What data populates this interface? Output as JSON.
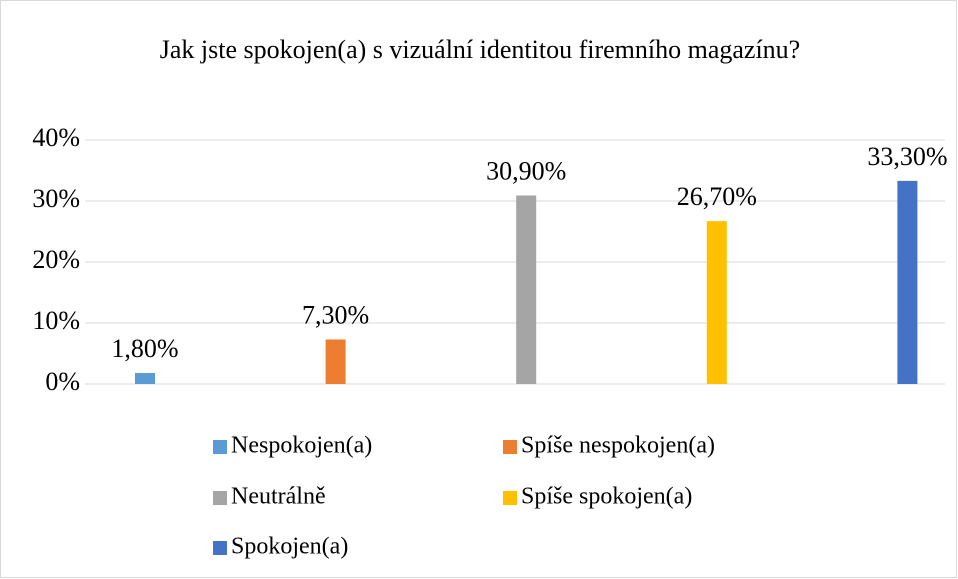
{
  "chart_data": {
    "type": "bar",
    "title": "Jak jste spokojen(a) s vizuální identitou firemního magazínu?",
    "series": [
      {
        "name": "Nespokojen(a)",
        "color": "#5b9bd5",
        "values": [
          1.8
        ],
        "value_labels": [
          "1,80%"
        ]
      },
      {
        "name": "Spíše nespokojen(a)",
        "color": "#ed7d31",
        "values": [
          7.3
        ],
        "value_labels": [
          "7,30%"
        ]
      },
      {
        "name": "Neutrálně",
        "color": "#a5a5a5",
        "values": [
          30.9
        ],
        "value_labels": [
          "30,90%"
        ]
      },
      {
        "name": "Spíše spokojen(a)",
        "color": "#ffc000",
        "values": [
          26.7
        ],
        "value_labels": [
          "26,70%"
        ]
      },
      {
        "name": "Spokojen(a)",
        "color": "#4472c4",
        "values": [
          33.3
        ],
        "value_labels": [
          "33,30%"
        ]
      }
    ],
    "ylim": [
      0,
      40
    ],
    "yticks": [
      {
        "value": 0,
        "label": "0%"
      },
      {
        "value": 10,
        "label": "10%"
      },
      {
        "value": 20,
        "label": "20%"
      },
      {
        "value": 30,
        "label": "30%"
      },
      {
        "value": 40,
        "label": "40%"
      }
    ],
    "grid": true,
    "legend": "bottom"
  }
}
